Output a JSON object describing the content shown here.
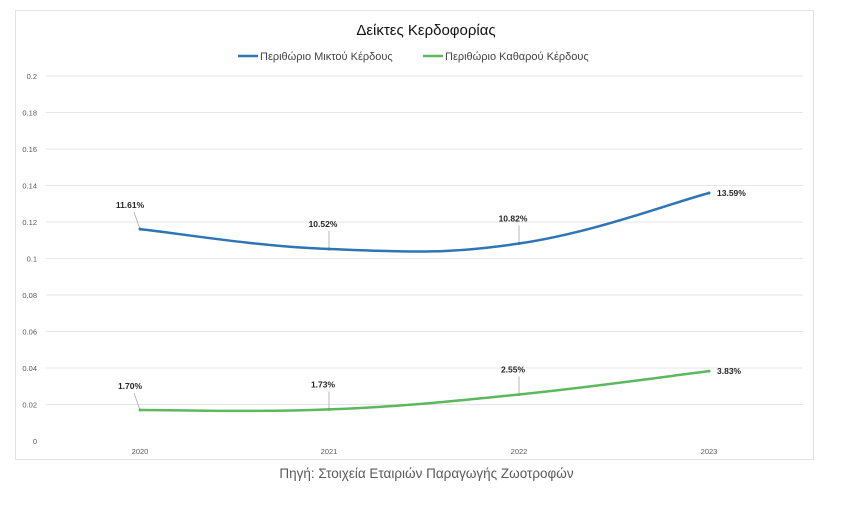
{
  "chart_data": {
    "type": "line",
    "title": "Δείκτες Κερδοφορίας",
    "categories": [
      "2020",
      "2021",
      "2022",
      "2023"
    ],
    "ylim": [
      0,
      0.2
    ],
    "yticks": [
      "0",
      "0.02",
      "0.04",
      "0.06",
      "0.08",
      "0.1",
      "0.12",
      "0.14",
      "0.16",
      "0.18",
      "0.2"
    ],
    "grid": true,
    "legend_position": "top-center",
    "series": [
      {
        "name": "Περιθώριο Μικτού Κέρδους",
        "color": "#2e75b6",
        "values": [
          0.1161,
          0.1052,
          0.1082,
          0.1359
        ],
        "labels": [
          "11.61%",
          "10.52%",
          "10.82%",
          "13.59%"
        ]
      },
      {
        "name": "Περιθώριο Καθαρού Κέρδους",
        "color": "#5cb85c",
        "values": [
          0.017,
          0.0173,
          0.0255,
          0.0383
        ],
        "labels": [
          "1.70%",
          "1.73%",
          "2.55%",
          "3.83%"
        ]
      }
    ]
  },
  "source_note": "Πηγή: Στοιχεία Εταιριών Παραγωγής Ζωοτροφών"
}
